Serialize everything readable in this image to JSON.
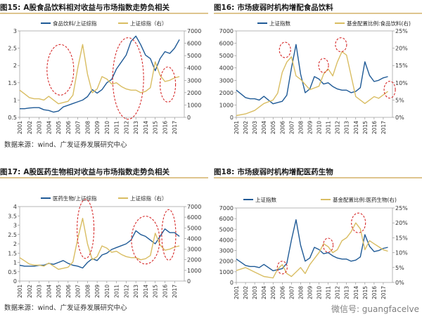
{
  "colors": {
    "blue": "#1f5a96",
    "gold": "#d9bd62",
    "circle": "#d62b2b",
    "rule": "#c9a24a"
  },
  "watermark": "微信号: guangfacelve",
  "chart_data": [
    {
      "type": "line",
      "figure_no": "图15:",
      "title": "A股食品饮料相对收益与市场指数走势负相关",
      "source_text": "数据来源：wind、广发证券发展研究中心",
      "x_ticks": [
        "2001",
        "2002",
        "2003",
        "2004",
        "2005",
        "2006",
        "2007",
        "2008",
        "2009",
        "2010",
        "2011",
        "2012",
        "2013",
        "2014",
        "2015",
        "2016",
        "2017"
      ],
      "xlim": [
        2001,
        2018
      ],
      "left_ylim": [
        0.5,
        3
      ],
      "left_ticks": [
        "0.5",
        "1",
        "1.5",
        "2",
        "2.5",
        "3"
      ],
      "right_ylim": [
        0,
        7000
      ],
      "right_ticks": [
        "0",
        "1000",
        "2000",
        "3000",
        "4000",
        "5000",
        "6000",
        "7000"
      ],
      "series": [
        {
          "name": "食品饮料/上证综指",
          "axis": "left",
          "color": "blue",
          "x": [
            2001,
            2001.5,
            2002,
            2002.5,
            2003,
            2003.5,
            2004,
            2004.5,
            2005,
            2005.5,
            2006,
            2006.5,
            2007,
            2007.5,
            2008,
            2008.5,
            2009,
            2009.5,
            2010,
            2010.5,
            2011,
            2011.5,
            2012,
            2012.5,
            2013,
            2013.5,
            2014,
            2014.5,
            2015,
            2015.5,
            2016,
            2016.5,
            2017,
            2017.5
          ],
          "values": [
            0.75,
            0.75,
            0.77,
            0.78,
            0.78,
            0.72,
            0.7,
            0.65,
            0.68,
            0.8,
            0.85,
            0.9,
            0.95,
            1.0,
            1.1,
            1.3,
            1.2,
            1.3,
            1.5,
            1.6,
            1.9,
            2.1,
            2.3,
            2.7,
            2.85,
            2.6,
            2.3,
            2.2,
            1.85,
            2.2,
            2.4,
            2.35,
            2.5,
            2.75
          ]
        },
        {
          "name": "上证综指（右）",
          "axis": "right",
          "color": "gold",
          "x": [
            2001,
            2001.5,
            2002,
            2002.5,
            2003,
            2003.5,
            2004,
            2004.5,
            2005,
            2005.5,
            2006,
            2006.5,
            2007,
            2007.5,
            2008,
            2008.5,
            2009,
            2009.5,
            2010,
            2010.5,
            2011,
            2011.5,
            2012,
            2012.5,
            2013,
            2013.5,
            2014,
            2014.5,
            2015,
            2015.5,
            2016,
            2016.5,
            2017,
            2017.5
          ],
          "values": [
            2200,
            1900,
            1600,
            1500,
            1500,
            1400,
            1700,
            1400,
            1100,
            1200,
            1300,
            1800,
            4000,
            5900,
            3500,
            2000,
            2300,
            3300,
            3100,
            2700,
            2800,
            2500,
            2300,
            2200,
            2200,
            2000,
            2100,
            2400,
            4500,
            3400,
            2900,
            3000,
            3200,
            3300
          ]
        }
      ],
      "legend": [
        "食品饮料/上证综指",
        "上证综指（右）"
      ],
      "legend_position": "top",
      "annotations": "red dashed ellipses around 2004-2006, 2011-2013 and 2015-2017"
    },
    {
      "type": "line",
      "figure_no": "图16:",
      "title": "市场疲弱时机构增配食品饮料",
      "x_ticks": [
        "2001",
        "2002",
        "2003",
        "2004",
        "2005",
        "2006",
        "2007",
        "2008",
        "2009",
        "2010",
        "2011",
        "2012",
        "2013",
        "2014",
        "2015",
        "2016",
        "2017"
      ],
      "xlim": [
        2001,
        2018
      ],
      "left_ylim": [
        0,
        7000
      ],
      "left_ticks": [
        "0",
        "1000",
        "2000",
        "3000",
        "4000",
        "5000",
        "6000",
        "7000"
      ],
      "right_ylim": [
        0,
        25
      ],
      "right_ticks": [
        "0%",
        "5%",
        "10%",
        "15%",
        "20%",
        "25%"
      ],
      "series": [
        {
          "name": "上证指数",
          "axis": "left",
          "color": "blue",
          "x": [
            2001,
            2001.5,
            2002,
            2002.5,
            2003,
            2003.5,
            2004,
            2004.5,
            2005,
            2005.5,
            2006,
            2006.5,
            2007,
            2007.5,
            2008,
            2008.5,
            2009,
            2009.5,
            2010,
            2010.5,
            2011,
            2011.5,
            2012,
            2012.5,
            2013,
            2013.5,
            2014,
            2014.5,
            2015,
            2015.5,
            2016,
            2016.5,
            2017,
            2017.5
          ],
          "values": [
            2200,
            1900,
            1600,
            1500,
            1500,
            1400,
            1700,
            1400,
            1100,
            1200,
            1300,
            1800,
            4000,
            5900,
            3500,
            2000,
            2300,
            3300,
            3100,
            2700,
            2800,
            2500,
            2300,
            2200,
            2200,
            2000,
            2100,
            2400,
            4500,
            3400,
            2900,
            3000,
            3200,
            3300
          ]
        },
        {
          "name": "基金配置比例:食品饮料(右)",
          "axis": "right",
          "color": "gold",
          "x": [
            2001,
            2002,
            2003,
            2004,
            2005,
            2005.5,
            2006,
            2006.5,
            2007,
            2007.5,
            2008,
            2009,
            2010,
            2010.5,
            2011,
            2011.5,
            2012,
            2012.5,
            2013,
            2014,
            2015,
            2015.5,
            2016,
            2016.5,
            2017,
            2017.5
          ],
          "values": [
            0.5,
            1.0,
            2.0,
            4.0,
            5.0,
            7.0,
            13.0,
            16.0,
            17.5,
            12.0,
            11.0,
            8.0,
            9.0,
            12.5,
            14.0,
            12.0,
            16.0,
            19.0,
            18.0,
            6.0,
            4.0,
            5.0,
            6.0,
            5.5,
            6.5,
            7.5
          ]
        }
      ],
      "legend": [
        "上证指数",
        "基金配置比例:食品饮料(右)"
      ],
      "legend_position": "top",
      "annotations": "red dashed circles around 2006, 2010 and 2012 peaks, and near 2017"
    },
    {
      "type": "line",
      "figure_no": "图17:",
      "title": "A股医药生物相对收益与市场指数走势负相关",
      "source_text": "数据来源：wind、广发证券发展研究中心",
      "x_ticks": [
        "2001",
        "2002",
        "2003",
        "2004",
        "2005",
        "2006",
        "2007",
        "2008",
        "2009",
        "2010",
        "2011",
        "2012",
        "2013",
        "2014",
        "2015",
        "2016",
        "2017"
      ],
      "xlim": [
        2001,
        2018
      ],
      "left_ylim": [
        0,
        4
      ],
      "left_ticks": [
        "0",
        "0.5",
        "1",
        "1.5",
        "2",
        "2.5",
        "3",
        "3.5",
        "4"
      ],
      "right_ylim": [
        0,
        7000
      ],
      "right_ticks": [
        "0",
        "1000",
        "2000",
        "3000",
        "4000",
        "5000",
        "6000",
        "7000"
      ],
      "series": [
        {
          "name": "医药生物/上证综指",
          "axis": "left",
          "color": "blue",
          "x": [
            2001,
            2001.5,
            2002,
            2002.5,
            2003,
            2003.5,
            2004,
            2004.5,
            2005,
            2005.5,
            2006,
            2006.5,
            2007,
            2007.5,
            2008,
            2008.5,
            2009,
            2009.5,
            2010,
            2010.5,
            2011,
            2011.5,
            2012,
            2012.5,
            2013,
            2013.5,
            2014,
            2014.5,
            2015,
            2015.5,
            2016,
            2016.5,
            2017,
            2017.5
          ],
          "values": [
            0.85,
            0.8,
            0.8,
            0.8,
            0.85,
            0.85,
            0.95,
            0.9,
            1.0,
            1.1,
            0.95,
            0.85,
            0.8,
            0.7,
            1.0,
            1.2,
            1.1,
            1.4,
            1.5,
            1.7,
            1.8,
            1.9,
            2.0,
            2.2,
            2.7,
            2.5,
            2.4,
            2.2,
            2.0,
            2.4,
            2.8,
            2.6,
            2.6,
            2.4
          ]
        },
        {
          "name": "上证综指（右）",
          "axis": "right",
          "color": "gold",
          "x": [
            2001,
            2001.5,
            2002,
            2002.5,
            2003,
            2003.5,
            2004,
            2004.5,
            2005,
            2005.5,
            2006,
            2006.5,
            2007,
            2007.5,
            2008,
            2008.5,
            2009,
            2009.5,
            2010,
            2010.5,
            2011,
            2011.5,
            2012,
            2012.5,
            2013,
            2013.5,
            2014,
            2014.5,
            2015,
            2015.5,
            2016,
            2016.5,
            2017,
            2017.5
          ],
          "values": [
            2200,
            1900,
            1600,
            1500,
            1500,
            1400,
            1700,
            1400,
            1100,
            1200,
            1300,
            1800,
            4000,
            5900,
            3500,
            2000,
            2300,
            3300,
            3100,
            2700,
            2800,
            2500,
            2300,
            2200,
            2200,
            2000,
            2100,
            2400,
            4500,
            3400,
            2900,
            3000,
            3200,
            3300
          ]
        }
      ],
      "legend": [
        "医药生物/上证综指",
        "上证综指（右）"
      ],
      "legend_position": "top",
      "annotations": "red dashed ellipses around 2007-2008, 2013-2015 and 2016-2017"
    },
    {
      "type": "line",
      "figure_no": "图18:",
      "title": "市场疲弱时机构增配医药生物",
      "x_ticks": [
        "2001",
        "2002",
        "2003",
        "2004",
        "2005",
        "2006",
        "2007",
        "2008",
        "2009",
        "2010",
        "2011",
        "2012",
        "2013",
        "2014",
        "2015",
        "2016",
        "2017"
      ],
      "xlim": [
        2001,
        2018
      ],
      "left_ylim": [
        0,
        7000
      ],
      "left_ticks": [
        "0",
        "1000",
        "2000",
        "3000",
        "4000",
        "5000",
        "6000",
        "7000"
      ],
      "right_ylim": [
        0,
        25
      ],
      "right_ticks": [
        "0%",
        "5%",
        "10%",
        "15%",
        "20%",
        "25%"
      ],
      "series": [
        {
          "name": "上证指数",
          "axis": "left",
          "color": "blue",
          "x": [
            2001,
            2001.5,
            2002,
            2002.5,
            2003,
            2003.5,
            2004,
            2004.5,
            2005,
            2005.5,
            2006,
            2006.5,
            2007,
            2007.5,
            2008,
            2008.5,
            2009,
            2009.5,
            2010,
            2010.5,
            2011,
            2011.5,
            2012,
            2012.5,
            2013,
            2013.5,
            2014,
            2014.5,
            2015,
            2015.5,
            2016,
            2016.5,
            2017,
            2017.5
          ],
          "values": [
            2200,
            1900,
            1600,
            1500,
            1500,
            1400,
            1700,
            1400,
            1100,
            1200,
            1300,
            1800,
            4000,
            5900,
            3500,
            2000,
            2300,
            3300,
            3100,
            2700,
            2800,
            2500,
            2300,
            2200,
            2200,
            2000,
            2100,
            2400,
            4500,
            3400,
            2900,
            3000,
            3200,
            3300
          ]
        },
        {
          "name": "基金配置比例:医药生物(右)",
          "axis": "right",
          "color": "gold",
          "x": [
            2001,
            2002,
            2003,
            2004,
            2005,
            2005.5,
            2006,
            2006.5,
            2007,
            2008,
            2008.5,
            2009,
            2010,
            2010.5,
            2011,
            2011.5,
            2012,
            2012.5,
            2013,
            2013.5,
            2014,
            2014.5,
            2015,
            2015.5,
            2016,
            2016.5,
            2017,
            2017.5
          ],
          "values": [
            4.0,
            5.0,
            3.5,
            2.0,
            1.5,
            4.5,
            6.0,
            3.0,
            2.0,
            5.0,
            3.0,
            6.0,
            10.0,
            13.0,
            12.0,
            10.0,
            11.0,
            14.0,
            15.0,
            17.0,
            20.0,
            18.0,
            11.0,
            14.0,
            13.0,
            12.0,
            11.0,
            10.5
          ]
        }
      ],
      "legend": [
        "上证指数",
        "基金配置比例:医药生物(右)"
      ],
      "legend_position": "top",
      "annotations": "red dashed circles around 2006, 2011 and 2014 peaks"
    }
  ]
}
